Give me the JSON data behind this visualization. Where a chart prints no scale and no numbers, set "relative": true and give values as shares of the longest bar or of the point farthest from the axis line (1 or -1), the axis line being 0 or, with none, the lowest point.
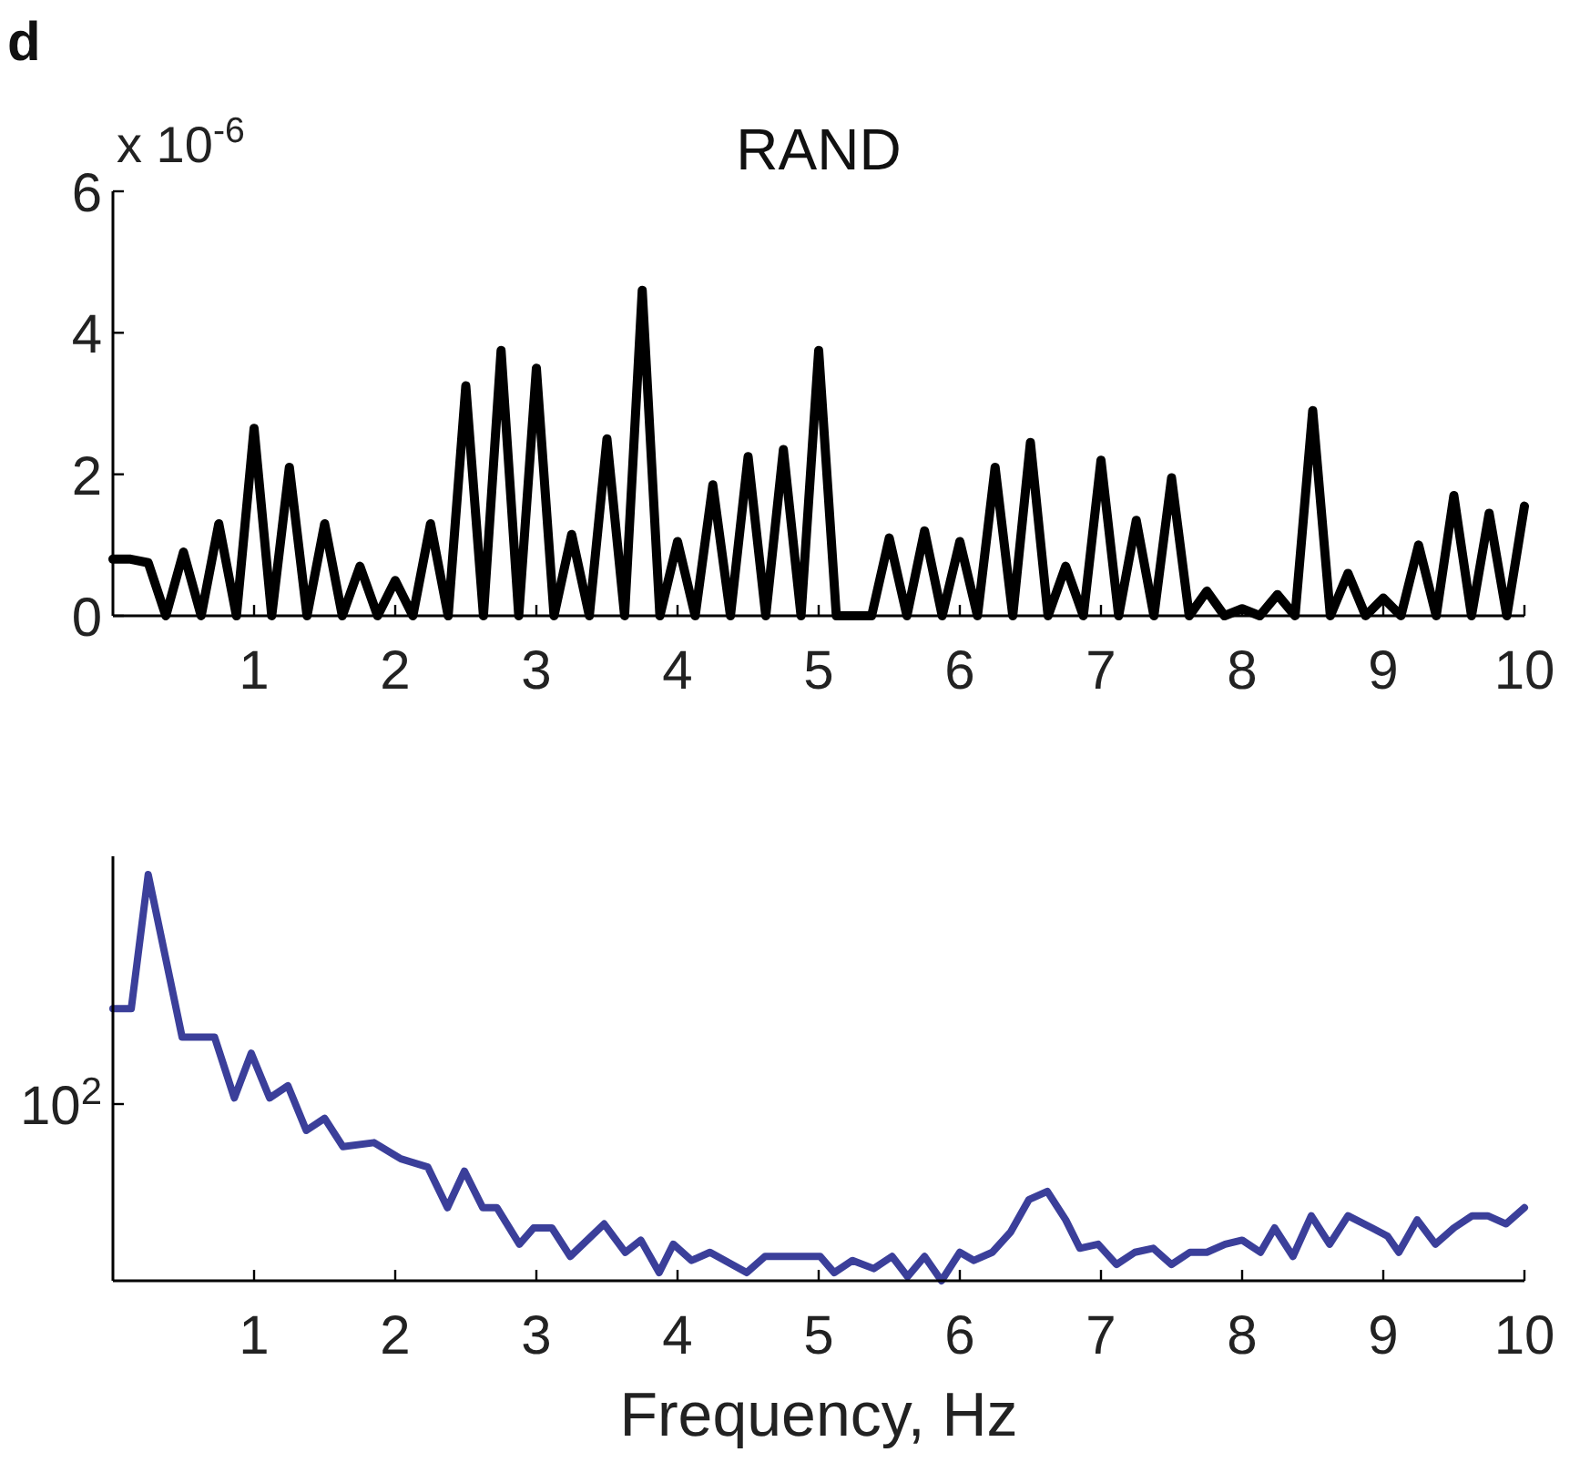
{
  "chart_data": [
    {
      "type": "line",
      "title": "RAND",
      "annotations": [
        "d",
        "x 10$^{-6}$"
      ],
      "xlim": [
        0,
        10
      ],
      "xticks": [
        1,
        2,
        3,
        4,
        5,
        6,
        7,
        8,
        9,
        10
      ],
      "ylim": [
        0,
        6
      ],
      "yticks": [
        0,
        2,
        4,
        6
      ],
      "x": [
        0,
        0.125,
        0.25,
        0.375,
        0.5,
        0.625,
        0.75,
        0.875,
        1,
        1.125,
        1.25,
        1.375,
        1.5,
        1.625,
        1.75,
        1.875,
        2,
        2.125,
        2.25,
        2.375,
        2.5,
        2.625,
        2.75,
        2.875,
        3,
        3.125,
        3.25,
        3.375,
        3.5,
        3.625,
        3.75,
        3.875,
        4,
        4.125,
        4.25,
        4.375,
        4.5,
        4.625,
        4.75,
        4.875,
        5,
        5.125,
        5.25,
        5.375,
        5.5,
        5.625,
        5.75,
        5.875,
        6,
        6.125,
        6.25,
        6.375,
        6.5,
        6.625,
        6.75,
        6.875,
        7,
        7.125,
        7.25,
        7.375,
        7.5,
        7.625,
        7.75,
        7.875,
        8,
        8.125,
        8.25,
        8.375,
        8.5,
        8.625,
        8.75,
        8.875,
        9,
        9.125,
        9.25,
        9.375,
        9.5,
        9.625,
        9.75,
        9.875,
        10
      ],
      "series": [
        {
          "color": "#000000",
          "values": [
            0.8,
            0.8,
            0.75,
            0,
            0.9,
            0,
            1.3,
            0,
            2.65,
            0,
            2.1,
            0,
            1.3,
            0,
            0.7,
            0,
            0.5,
            0,
            1.3,
            0,
            3.25,
            0,
            3.75,
            0,
            3.5,
            0,
            1.15,
            0,
            2.5,
            0,
            4.6,
            0,
            1.05,
            0,
            1.85,
            0,
            2.25,
            0,
            2.35,
            0,
            3.75,
            0,
            0,
            0,
            1.1,
            0,
            1.2,
            0,
            1.05,
            0,
            2.1,
            0,
            2.45,
            0,
            0.7,
            0,
            2.2,
            0,
            1.35,
            0,
            1.95,
            0,
            0.35,
            0,
            0.1,
            0,
            0.3,
            0,
            2.9,
            0,
            0.6,
            0,
            0.25,
            0,
            1,
            0,
            1.7,
            0,
            1.45,
            0,
            1.55
          ]
        }
      ]
    },
    {
      "type": "line",
      "relative": true,
      "xlabel": "Frequency, Hz",
      "annotations": [
        "10$^{2}$"
      ],
      "xlim": [
        0,
        10
      ],
      "xticks": [
        1,
        2,
        3,
        4,
        5,
        6,
        7,
        8,
        9,
        10
      ],
      "x": [
        0,
        0.13,
        0.25,
        0.49,
        0.72,
        0.86,
        0.98,
        1.11,
        1.24,
        1.37,
        1.5,
        1.63,
        1.85,
        2.04,
        2.23,
        2.37,
        2.49,
        2.62,
        2.72,
        2.88,
        2.98,
        3.11,
        3.24,
        3.48,
        3.63,
        3.74,
        3.87,
        3.97,
        4.1,
        4.23,
        4.49,
        4.62,
        5.01,
        5.11,
        5.24,
        5.39,
        5.52,
        5.63,
        5.75,
        5.87,
        6,
        6.1,
        6.23,
        6.36,
        6.49,
        6.62,
        6.75,
        6.85,
        6.98,
        7.11,
        7.24,
        7.37,
        7.5,
        7.63,
        7.75,
        7.88,
        8,
        8.13,
        8.23,
        8.36,
        8.49,
        8.62,
        8.75,
        8.92,
        9.03,
        9.11,
        9.24,
        9.37,
        9.5,
        9.63,
        9.74,
        9.87,
        10
      ],
      "series": [
        {
          "color": "#3b3f9a",
          "values": [
            0.67,
            0.67,
            1,
            0.6,
            0.6,
            0.45,
            0.56,
            0.45,
            0.48,
            0.37,
            0.4,
            0.33,
            0.34,
            0.3,
            0.28,
            0.18,
            0.27,
            0.18,
            0.18,
            0.09,
            0.13,
            0.13,
            0.06,
            0.14,
            0.07,
            0.1,
            0.02,
            0.09,
            0.05,
            0.07,
            0.02,
            0.06,
            0.06,
            0.02,
            0.05,
            0.03,
            0.06,
            0.01,
            0.06,
            0,
            0.07,
            0.05,
            0.07,
            0.12,
            0.2,
            0.22,
            0.15,
            0.08,
            0.09,
            0.04,
            0.07,
            0.08,
            0.04,
            0.07,
            0.07,
            0.09,
            0.1,
            0.07,
            0.13,
            0.06,
            0.16,
            0.09,
            0.16,
            0.13,
            0.11,
            0.07,
            0.15,
            0.09,
            0.13,
            0.16,
            0.16,
            0.14,
            0.18
          ]
        }
      ]
    }
  ]
}
